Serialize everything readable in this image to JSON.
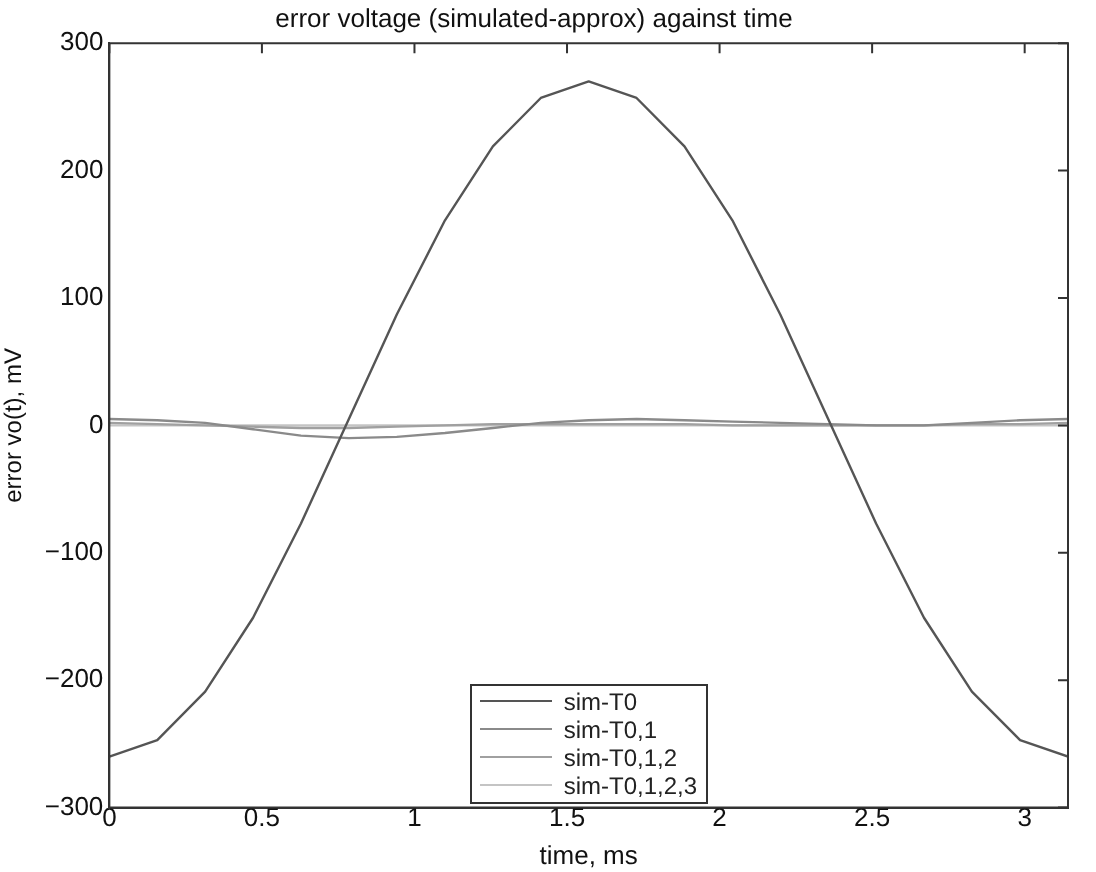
{
  "chart_data": {
    "type": "line",
    "title": "error voltage (simulated-approx) against time",
    "xlabel": "time, ms",
    "ylabel": "error vo(t), mV",
    "x": [
      0,
      0.157,
      0.314,
      0.471,
      0.628,
      0.785,
      0.942,
      1.1,
      1.257,
      1.414,
      1.571,
      1.728,
      1.885,
      2.042,
      2.199,
      2.356,
      2.513,
      2.67,
      2.827,
      2.985,
      3.142
    ],
    "series": [
      {
        "name": "sim-T0",
        "color": "#555555",
        "values": [
          -260,
          -247,
          -209,
          -151,
          -77,
          5,
          87,
          161,
          219,
          257,
          270,
          257,
          219,
          161,
          87,
          5,
          -77,
          -151,
          -209,
          -247,
          -260
        ]
      },
      {
        "name": "sim-T0,1",
        "color": "#8a8a8a",
        "values": [
          5,
          4,
          2,
          -3,
          -8,
          -10,
          -9,
          -6,
          -2,
          2,
          4,
          5,
          4,
          3,
          2,
          1,
          0,
          0,
          2,
          4,
          5
        ]
      },
      {
        "name": "sim-T0,1,2",
        "color": "#a0a0a0",
        "values": [
          2,
          1,
          0,
          -1,
          -2,
          -2,
          -1,
          0,
          1,
          1,
          1,
          1,
          1,
          0,
          0,
          0,
          0,
          0,
          1,
          1,
          2
        ]
      },
      {
        "name": "sim-T0,1,2,3",
        "color": "#c4c4c4",
        "values": [
          0,
          0,
          0,
          0,
          0,
          0,
          0,
          0,
          0,
          0,
          0,
          0,
          0,
          0,
          0,
          0,
          0,
          0,
          0,
          0,
          0
        ]
      }
    ],
    "xlim": [
      0,
      3.142
    ],
    "xticks": [
      0,
      0.5,
      1,
      1.5,
      2,
      2.5,
      3
    ],
    "ylim": [
      -300,
      300
    ],
    "yticks": [
      {
        "value": -300,
        "label": "−300"
      },
      {
        "value": -200,
        "label": "−200"
      },
      {
        "value": -100,
        "label": "−100"
      },
      0,
      100,
      200,
      300
    ],
    "grid": false,
    "legend": "bottom",
    "marker": "none",
    "line_style": "solid"
  }
}
